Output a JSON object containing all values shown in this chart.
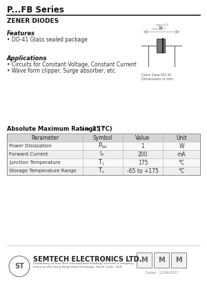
{
  "title": "P...FB Series",
  "subtitle": "ZENER DIODES",
  "features_title": "Features",
  "features": [
    "• DO-41 Glass sealed package"
  ],
  "applications_title": "Applications",
  "applications": [
    "• Circuits for Constant Voltage, Constant Current",
    "• Wave form clipper, Surge absorber, etc."
  ],
  "table_title_pre": "Absolute Maximum Ratings (T",
  "table_title_post": " = 25 °C)",
  "table_headers": [
    "Parameter",
    "Symbol",
    "Value",
    "Unit"
  ],
  "table_rows": [
    [
      "Power Dissipation",
      "Ptot",
      "1",
      "W"
    ],
    [
      "Forward Current",
      "IF",
      "200",
      "mA"
    ],
    [
      "Junction Temperature",
      "Tj",
      "175",
      "°C"
    ],
    [
      "Storage Temperature Range",
      "Ts",
      "-65 to +175",
      "°C"
    ]
  ],
  "sym_main": [
    "P",
    "I",
    "T",
    "T"
  ],
  "sym_sub": [
    "tot",
    "F",
    "j",
    "s"
  ],
  "footer_company": "SEMTECH ELECTRONICS LTD.",
  "footer_sub1": "(Subsidiary of Sino Rich International Holdings Limited, a company",
  "footer_sub2": "listed on the Hong Kong Stock Exchange, Stock Code: 724)",
  "footer_date": "Dated : 12/09/2007",
  "bg_color": "#ffffff",
  "text_color": "#000000",
  "dim_label1": "Glass Case DO-41",
  "dim_label2": "Dimensions in mm"
}
